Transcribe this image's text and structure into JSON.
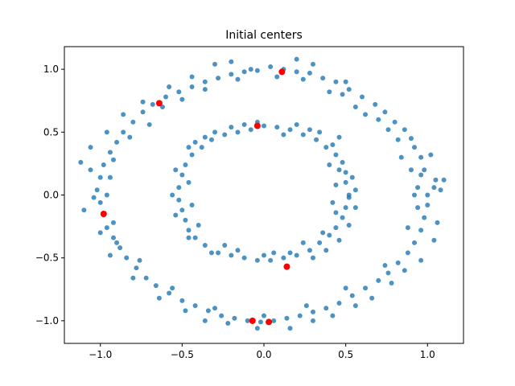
{
  "chart_data": {
    "type": "scatter",
    "title": "Initial centers",
    "xlabel": "",
    "ylabel": "",
    "xlim": [
      -1.22,
      1.22
    ],
    "ylim": [
      -1.18,
      1.18
    ],
    "x_ticks": [
      -1.0,
      -0.5,
      0.0,
      0.5,
      1.0
    ],
    "x_tick_labels": [
      "−1.0",
      "−0.5",
      "0.0",
      "0.5",
      "1.0"
    ],
    "y_ticks": [
      -1.0,
      -0.5,
      0.0,
      0.5,
      1.0
    ],
    "y_tick_labels": [
      "−1.0",
      "−0.5",
      "0.0",
      "0.5",
      "1.0"
    ],
    "grid": false,
    "colors": {
      "points": "#1f77b4",
      "centers": "#ff0000"
    },
    "series": [
      {
        "points": [
          [
            1.0,
            0.0
          ],
          [
            1.05,
            0.12
          ],
          [
            0.98,
            0.2
          ],
          [
            0.96,
            0.3
          ],
          [
            0.92,
            0.38
          ],
          [
            0.9,
            0.45
          ],
          [
            0.86,
            0.52
          ],
          [
            0.8,
            0.58
          ],
          [
            0.74,
            0.66
          ],
          [
            0.68,
            0.72
          ],
          [
            0.6,
            0.78
          ],
          [
            0.52,
            0.84
          ],
          [
            0.44,
            0.9
          ],
          [
            0.36,
            0.93
          ],
          [
            0.28,
            0.97
          ],
          [
            0.2,
            0.98
          ],
          [
            0.12,
            1.0
          ],
          [
            0.04,
            1.02
          ],
          [
            -0.04,
            0.99
          ],
          [
            -0.12,
            0.98
          ],
          [
            -0.2,
            0.96
          ],
          [
            -0.28,
            0.93
          ],
          [
            -0.36,
            0.9
          ],
          [
            -0.44,
            0.86
          ],
          [
            -0.52,
            0.82
          ],
          [
            -0.6,
            0.78
          ],
          [
            -0.68,
            0.72
          ],
          [
            -0.74,
            0.66
          ],
          [
            -0.8,
            0.58
          ],
          [
            -0.86,
            0.5
          ],
          [
            -0.9,
            0.42
          ],
          [
            -0.94,
            0.34
          ],
          [
            -0.98,
            0.24
          ],
          [
            -1.0,
            0.14
          ],
          [
            -1.02,
            0.04
          ],
          [
            -1.0,
            -0.06
          ],
          [
            -0.98,
            -0.16
          ],
          [
            -0.96,
            -0.26
          ],
          [
            -0.92,
            -0.34
          ],
          [
            -0.88,
            -0.42
          ],
          [
            -0.84,
            -0.5
          ],
          [
            -0.78,
            -0.58
          ],
          [
            -0.72,
            -0.66
          ],
          [
            -0.66,
            -0.72
          ],
          [
            -0.58,
            -0.78
          ],
          [
            -0.5,
            -0.84
          ],
          [
            -0.42,
            -0.88
          ],
          [
            -0.34,
            -0.92
          ],
          [
            -0.26,
            -0.96
          ],
          [
            -0.18,
            -0.98
          ],
          [
            -0.1,
            -1.0
          ],
          [
            -0.02,
            -1.01
          ],
          [
            0.06,
            -1.0
          ],
          [
            0.14,
            -0.98
          ],
          [
            0.22,
            -0.96
          ],
          [
            0.3,
            -0.93
          ],
          [
            0.38,
            -0.9
          ],
          [
            0.46,
            -0.86
          ],
          [
            0.54,
            -0.8
          ],
          [
            0.62,
            -0.74
          ],
          [
            0.7,
            -0.68
          ],
          [
            0.76,
            -0.62
          ],
          [
            0.82,
            -0.54
          ],
          [
            0.88,
            -0.46
          ],
          [
            0.92,
            -0.38
          ],
          [
            0.96,
            -0.28
          ],
          [
            0.98,
            -0.18
          ],
          [
            1.0,
            -0.08
          ],
          [
            1.08,
            0.04
          ],
          [
            1.1,
            0.12
          ],
          [
            0.94,
            0.06
          ],
          [
            0.9,
            0.2
          ],
          [
            1.02,
            0.32
          ],
          [
            0.82,
            0.44
          ],
          [
            0.7,
            0.6
          ],
          [
            0.56,
            0.7
          ],
          [
            0.4,
            0.82
          ],
          [
            0.3,
            1.04
          ],
          [
            0.2,
            1.08
          ],
          [
            -0.3,
            1.04
          ],
          [
            -0.2,
            1.06
          ],
          [
            -0.44,
            0.94
          ],
          [
            -0.58,
            0.86
          ],
          [
            -0.74,
            0.74
          ],
          [
            -0.86,
            0.64
          ],
          [
            -0.96,
            0.5
          ],
          [
            -1.06,
            0.38
          ],
          [
            -1.12,
            0.26
          ],
          [
            -1.06,
            0.2
          ],
          [
            -0.94,
            0.14
          ],
          [
            -1.04,
            -0.02
          ],
          [
            -1.1,
            -0.12
          ],
          [
            -0.92,
            -0.22
          ],
          [
            -1.0,
            -0.3
          ],
          [
            -0.94,
            -0.48
          ],
          [
            -0.8,
            -0.66
          ],
          [
            -0.64,
            -0.82
          ],
          [
            -0.48,
            -0.92
          ],
          [
            -0.36,
            -1.0
          ],
          [
            -0.22,
            -1.02
          ],
          [
            -0.04,
            -1.06
          ],
          [
            0.16,
            -1.06
          ],
          [
            0.3,
            -1.0
          ],
          [
            0.42,
            -0.96
          ],
          [
            0.56,
            -0.88
          ],
          [
            0.66,
            -0.82
          ],
          [
            0.78,
            -0.7
          ],
          [
            0.86,
            -0.6
          ],
          [
            0.96,
            -0.52
          ],
          [
            1.04,
            -0.36
          ],
          [
            1.06,
            -0.22
          ],
          [
            0.94,
            -0.1
          ],
          [
            1.04,
            0.06
          ],
          [
            0.92,
            0.0
          ],
          [
            0.84,
            0.3
          ],
          [
            0.62,
            0.64
          ],
          [
            0.5,
            0.9
          ],
          [
            0.08,
            0.94
          ],
          [
            -0.08,
            1.0
          ],
          [
            -0.36,
            0.84
          ],
          [
            -0.62,
            0.7
          ],
          [
            -0.82,
            0.46
          ],
          [
            -0.92,
            0.28
          ],
          [
            -0.96,
            0.0
          ],
          [
            -0.9,
            -0.38
          ],
          [
            -0.76,
            -0.52
          ],
          [
            -0.56,
            -0.74
          ],
          [
            -0.3,
            -0.9
          ],
          [
            0.0,
            -0.96
          ],
          [
            0.26,
            -0.88
          ],
          [
            0.5,
            -0.74
          ],
          [
            0.74,
            -0.56
          ],
          [
            0.88,
            -0.26
          ],
          [
            0.96,
            0.16
          ],
          [
            0.76,
            0.52
          ],
          [
            0.48,
            0.8
          ],
          [
            0.24,
            0.92
          ],
          [
            -0.16,
            0.92
          ],
          [
            -0.5,
            0.76
          ],
          [
            -0.7,
            0.56
          ],
          [
            0.52,
            0.0
          ],
          [
            0.5,
            0.1
          ],
          [
            0.5,
            0.18
          ],
          [
            0.48,
            0.26
          ],
          [
            0.44,
            0.32
          ],
          [
            0.38,
            0.38
          ],
          [
            0.32,
            0.44
          ],
          [
            0.24,
            0.48
          ],
          [
            0.16,
            0.52
          ],
          [
            0.08,
            0.54
          ],
          [
            0.0,
            0.55
          ],
          [
            -0.08,
            0.52
          ],
          [
            -0.16,
            0.5
          ],
          [
            -0.24,
            0.48
          ],
          [
            -0.32,
            0.44
          ],
          [
            -0.38,
            0.38
          ],
          [
            -0.44,
            0.32
          ],
          [
            -0.48,
            0.24
          ],
          [
            -0.5,
            0.16
          ],
          [
            -0.52,
            0.06
          ],
          [
            -0.52,
            -0.04
          ],
          [
            -0.5,
            -0.12
          ],
          [
            -0.48,
            -0.2
          ],
          [
            -0.46,
            -0.28
          ],
          [
            -0.42,
            -0.34
          ],
          [
            -0.36,
            -0.4
          ],
          [
            -0.28,
            -0.46
          ],
          [
            -0.2,
            -0.48
          ],
          [
            -0.12,
            -0.5
          ],
          [
            -0.04,
            -0.52
          ],
          [
            0.04,
            -0.52
          ],
          [
            0.12,
            -0.5
          ],
          [
            0.2,
            -0.48
          ],
          [
            0.28,
            -0.44
          ],
          [
            0.34,
            -0.38
          ],
          [
            0.4,
            -0.32
          ],
          [
            0.44,
            -0.26
          ],
          [
            0.48,
            -0.18
          ],
          [
            0.5,
            -0.1
          ],
          [
            0.52,
            -0.02
          ],
          [
            0.54,
            0.14
          ],
          [
            0.56,
            0.04
          ],
          [
            0.46,
            0.2
          ],
          [
            0.42,
            0.4
          ],
          [
            0.28,
            0.52
          ],
          [
            0.12,
            0.48
          ],
          [
            -0.04,
            0.58
          ],
          [
            -0.2,
            0.54
          ],
          [
            -0.36,
            0.46
          ],
          [
            -0.46,
            0.38
          ],
          [
            -0.54,
            0.2
          ],
          [
            -0.56,
            0.0
          ],
          [
            -0.54,
            -0.16
          ],
          [
            -0.46,
            -0.34
          ],
          [
            -0.32,
            -0.46
          ],
          [
            -0.16,
            -0.44
          ],
          [
            0.0,
            -0.48
          ],
          [
            0.16,
            -0.46
          ],
          [
            0.3,
            -0.5
          ],
          [
            0.38,
            -0.44
          ],
          [
            0.46,
            -0.36
          ],
          [
            0.52,
            -0.24
          ],
          [
            0.56,
            -0.1
          ],
          [
            0.44,
            0.08
          ],
          [
            0.42,
            -0.06
          ],
          [
            0.46,
            0.46
          ],
          [
            0.34,
            0.5
          ],
          [
            0.2,
            0.56
          ],
          [
            -0.12,
            0.56
          ],
          [
            -0.3,
            0.5
          ],
          [
            -0.42,
            0.42
          ],
          [
            -0.46,
            0.1
          ],
          [
            -0.44,
            -0.08
          ],
          [
            -0.4,
            -0.24
          ],
          [
            -0.24,
            -0.4
          ],
          [
            0.06,
            -0.46
          ],
          [
            0.24,
            -0.38
          ],
          [
            0.36,
            -0.3
          ],
          [
            0.44,
            -0.14
          ],
          [
            0.4,
            0.24
          ]
        ]
      }
    ],
    "centers": [
      [
        0.11,
        0.98
      ],
      [
        -0.64,
        0.73
      ],
      [
        -0.04,
        0.55
      ],
      [
        -0.98,
        -0.15
      ],
      [
        0.14,
        -0.57
      ],
      [
        -0.07,
        -1.0
      ],
      [
        0.03,
        -1.01
      ]
    ]
  }
}
